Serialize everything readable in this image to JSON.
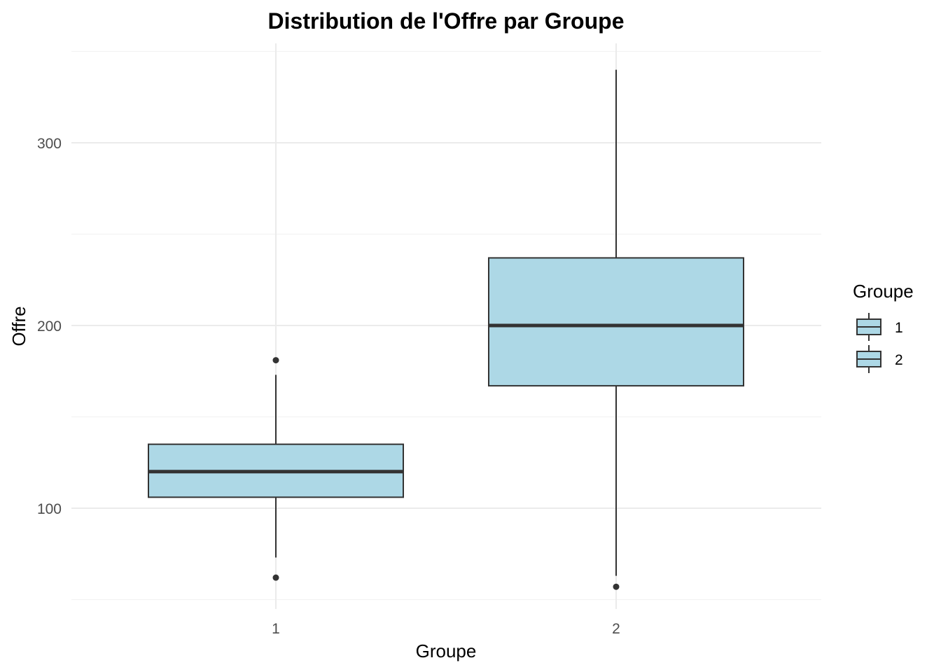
{
  "chart_data": {
    "type": "boxplot",
    "title": "Distribution de l'Offre par Groupe",
    "xlabel": "Groupe",
    "ylabel": "Offre",
    "categories": [
      "1",
      "2"
    ],
    "y_ticks": [
      100,
      200,
      300
    ],
    "ylim": [
      50,
      350
    ],
    "grid": true,
    "boxes": [
      {
        "group": "1",
        "min": 73,
        "q1": 106,
        "median": 120,
        "q3": 135,
        "max": 173,
        "outliers": [
          181,
          62
        ]
      },
      {
        "group": "2",
        "min": 63,
        "q1": 167,
        "median": 200,
        "q3": 237,
        "max": 340,
        "outliers": [
          57
        ]
      }
    ],
    "legend": {
      "title": "Groupe",
      "position": "right",
      "entries": [
        "1",
        "2"
      ]
    },
    "colors": {
      "box_fill": "#add8e6",
      "box_stroke": "#333333",
      "grid_major": "#ebebeb",
      "grid_minor": "#f3f3f3"
    }
  }
}
